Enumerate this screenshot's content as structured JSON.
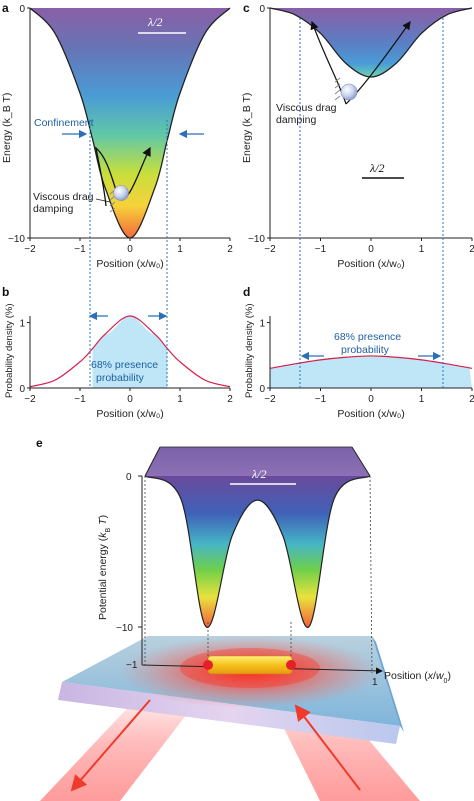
{
  "colors": {
    "curve": "#222222",
    "probability_curve": "#d6204b",
    "probability_fill": "#bfe6f7",
    "guide": "#2a73c4",
    "confinement": "#2a6fb8",
    "laser": "#ef3b2c"
  },
  "panels": {
    "a": {
      "letter": "a",
      "confinement": "Confinement",
      "viscous": [
        "Viscous drag",
        "damping"
      ],
      "lambda": "λ/2"
    },
    "b": {
      "letter": "b",
      "presence": [
        "68% presence",
        "probability"
      ]
    },
    "c": {
      "letter": "c",
      "viscous": [
        "Viscous drag",
        "damping"
      ],
      "lambda": "λ/2"
    },
    "d": {
      "letter": "d",
      "presence": [
        "68% presence",
        "probability"
      ]
    },
    "e": {
      "letter": "e",
      "lambda": "λ/2"
    }
  },
  "axes": {
    "position_label": "Position (x/w₀)",
    "energy_label": "Energy (k_B T)",
    "probability_label": "Probability density (%)",
    "potential_label": "Potential energy (k_B T)",
    "x_ticks": [
      "−2",
      "−1",
      "0",
      "1",
      "2"
    ],
    "energy_ticks": [
      "0",
      "−10"
    ],
    "probability_ticks": [
      "1",
      "0"
    ],
    "e_energy_ticks": [
      "0",
      "−10"
    ],
    "e_position_ticks": [
      "−1",
      "1"
    ]
  },
  "chart_data": [
    {
      "panel": "a",
      "type": "line",
      "series": [
        {
          "x": [
            -2,
            -1.5,
            -1,
            -0.75,
            -0.5,
            0,
            0.5,
            0.75,
            1,
            1.5,
            2
          ],
          "y": [
            0,
            -1.1,
            -3.7,
            -5.7,
            -7.8,
            -10,
            -7.8,
            -5.7,
            -3.7,
            -1.1,
            0
          ]
        }
      ],
      "xlim": [
        -2,
        2
      ],
      "ylim": [
        -10,
        0
      ],
      "xlabel": "Position (x/w₀)",
      "ylabel": "Energy (k_B T)",
      "colormap": "rainbow",
      "annotations": [
        "Confinement",
        "Viscous drag damping",
        "λ/2"
      ]
    },
    {
      "panel": "b",
      "type": "area",
      "series": [
        {
          "x": [
            -2,
            -1.5,
            -1,
            -0.75,
            -0.5,
            0,
            0.5,
            0.75,
            1,
            1.5,
            2
          ],
          "y": [
            0.02,
            0.12,
            0.4,
            0.6,
            0.82,
            1.1,
            0.82,
            0.6,
            0.4,
            0.12,
            0.02
          ]
        }
      ],
      "xlim": [
        -2,
        2
      ],
      "ylim": [
        0,
        1.1
      ],
      "xlabel": "Position (x/w₀)",
      "ylabel": "Probability density (%)",
      "shaded_interval": [
        -0.75,
        0.75
      ],
      "annotations": [
        "68% presence probability"
      ]
    },
    {
      "panel": "c",
      "type": "line",
      "series": [
        {
          "x": [
            -2,
            -1.5,
            -1,
            -0.5,
            0,
            0.5,
            1,
            1.5,
            2
          ],
          "y": [
            0,
            -0.3,
            -1.1,
            -2.4,
            -3,
            -2.4,
            -1.1,
            -0.3,
            0
          ]
        }
      ],
      "xlim": [
        -2,
        2
      ],
      "ylim": [
        -10,
        0
      ],
      "xlabel": "Position (x/w₀)",
      "ylabel": "Energy (k_B T)",
      "colormap": "rainbow",
      "annotations": [
        "Viscous drag damping",
        "λ/2"
      ]
    },
    {
      "panel": "d",
      "type": "area",
      "series": [
        {
          "x": [
            -2,
            -1.5,
            -1,
            -0.5,
            0,
            0.5,
            1,
            1.5,
            2
          ],
          "y": [
            0.3,
            0.37,
            0.43,
            0.47,
            0.49,
            0.47,
            0.43,
            0.37,
            0.3
          ]
        }
      ],
      "xlim": [
        -2,
        2
      ],
      "ylim": [
        0,
        1.1
      ],
      "xlabel": "Position (x/w₀)",
      "ylabel": "Probability density (%)",
      "shaded_interval": [
        -2,
        2
      ],
      "annotations": [
        "68% presence probability"
      ]
    },
    {
      "panel": "e",
      "type": "line",
      "series": [
        {
          "x": [
            -1.1,
            -0.75,
            -0.5,
            -0.25,
            0,
            0.25,
            0.5,
            0.75,
            1.1
          ],
          "y": [
            0,
            -1.5,
            -10,
            -4,
            -1.6,
            -4,
            -10,
            -1.5,
            0
          ]
        }
      ],
      "ylim": [
        -10,
        0
      ],
      "xlabel": "Position (x/w₀)",
      "ylabel": "Potential energy (k_B T)",
      "colormap": "rainbow",
      "annotations": [
        "λ/2"
      ]
    }
  ]
}
